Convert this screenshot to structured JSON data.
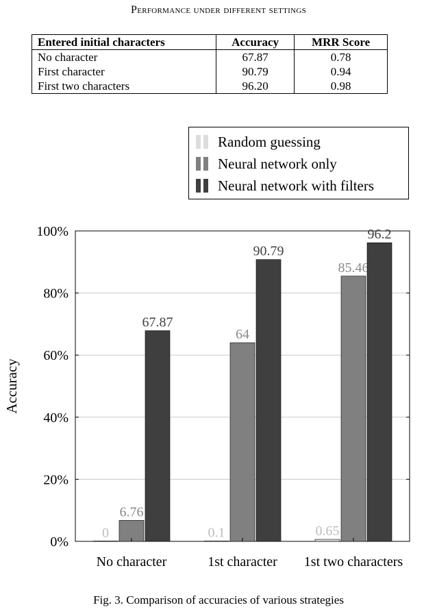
{
  "table": {
    "caption": "Performance under different settings",
    "headers": [
      "Entered initial characters",
      "Accuracy",
      "MRR Score"
    ],
    "rows": [
      [
        "No character",
        "67.87",
        "0.78"
      ],
      [
        "First character",
        "90.79",
        "0.94"
      ],
      [
        "First two characters",
        "96.20",
        "0.98"
      ]
    ]
  },
  "chart_data": {
    "type": "bar",
    "categories": [
      "No character",
      "1st character",
      "1st two characters"
    ],
    "series": [
      {
        "name": "Random guessing",
        "values": [
          0,
          0.1,
          0.65
        ],
        "labels": [
          "0",
          "0.1",
          "0.65"
        ],
        "color": "#dcdcdc",
        "label_color": "#bdbdbd"
      },
      {
        "name": "Neural network only",
        "values": [
          6.76,
          64,
          85.46
        ],
        "labels": [
          "6.76",
          "64",
          "85.46"
        ],
        "color": "#808080",
        "label_color": "#8a8a8a"
      },
      {
        "name": "Neural network with filters",
        "values": [
          67.87,
          90.79,
          96.2
        ],
        "labels": [
          "67.87",
          "90.79",
          "96.2"
        ],
        "color": "#3f3f3f",
        "label_color": "#404040"
      }
    ],
    "ylabel": "Accuracy",
    "ylim": [
      0,
      100
    ],
    "yticks": [
      0,
      20,
      40,
      60,
      80,
      100
    ],
    "ytick_labels": [
      "0%",
      "20%",
      "40%",
      "60%",
      "80%",
      "100%"
    ],
    "grid": true,
    "legend_placement": "above-right"
  },
  "figure_caption": "Fig. 3.  Comparison of accuracies of various strategies"
}
